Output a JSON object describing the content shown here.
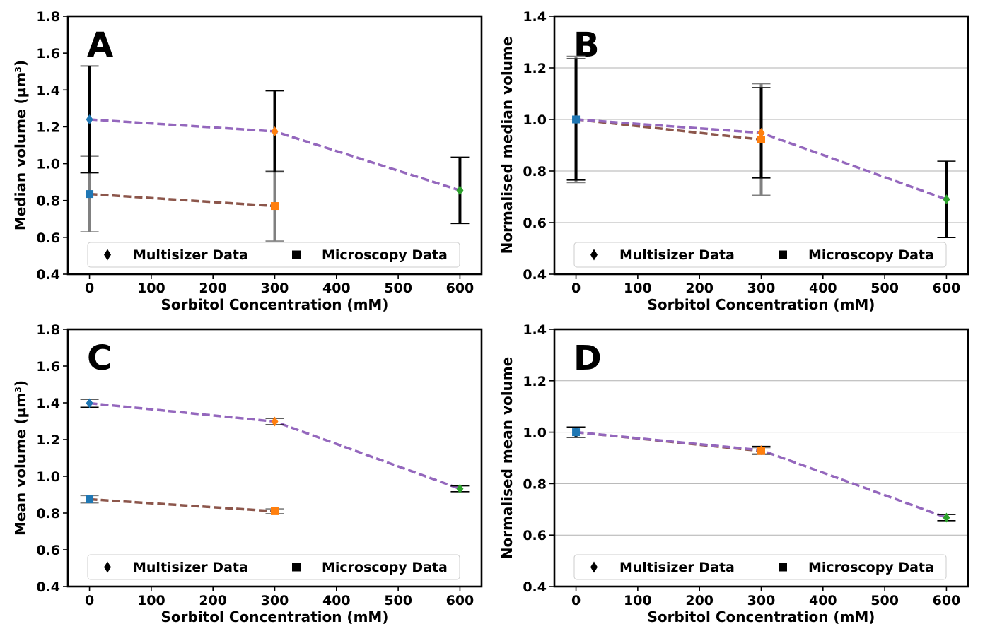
{
  "chart_data": [
    {
      "type": "line",
      "panel_label": "A",
      "xlabel": "Sorbitol Concentration (mM)",
      "ylabel": "Median volume (µm³)",
      "xlim": [
        -35,
        635
      ],
      "ylim": [
        0.4,
        1.8
      ],
      "xticks": [
        0,
        100,
        200,
        300,
        400,
        500,
        600
      ],
      "yticks": [
        0.4,
        0.6,
        0.8,
        1.0,
        1.2,
        1.4,
        1.6,
        1.8
      ],
      "ytick_labels": [
        "0.4",
        "0.6",
        "0.8",
        "1.0",
        "1.2",
        "1.4",
        "1.6",
        "1.8"
      ],
      "grid": false,
      "legend": {
        "placement": "bottom",
        "entries": [
          {
            "marker": "diamond",
            "label": "Multisizer Data"
          },
          {
            "marker": "square",
            "label": "Microscopy Data"
          }
        ]
      },
      "series": [
        {
          "name": "Multisizer Data",
          "marker": "diamond",
          "line_color": "#9467bd",
          "errorbar_color": "#000000",
          "x": [
            0,
            300,
            600
          ],
          "y": [
            1.24,
            1.175,
            0.855
          ],
          "yerr": [
            0.29,
            0.22,
            0.18
          ],
          "point_colors": [
            "#1f77b4",
            "#ff7f0e",
            "#2ca02c"
          ]
        },
        {
          "name": "Microscopy Data",
          "marker": "square",
          "line_color": "#8c564b",
          "errorbar_color": "#808080",
          "x": [
            0,
            300
          ],
          "y": [
            0.835,
            0.77
          ],
          "yerr": [
            0.205,
            0.19
          ],
          "point_colors": [
            "#1f77b4",
            "#ff7f0e"
          ]
        }
      ]
    },
    {
      "type": "line",
      "panel_label": "B",
      "xlabel": "Sorbitol Concentration (mM)",
      "ylabel": "Normalised median volume",
      "xlim": [
        -35,
        635
      ],
      "ylim": [
        0.4,
        1.4
      ],
      "xticks": [
        0,
        100,
        200,
        300,
        400,
        500,
        600
      ],
      "yticks": [
        0.4,
        0.6,
        0.8,
        1.0,
        1.2,
        1.4
      ],
      "ytick_labels": [
        "0.4",
        "0.6",
        "0.8",
        "1.0",
        "1.2",
        "1.4"
      ],
      "grid": true,
      "legend": {
        "placement": "bottom",
        "entries": [
          {
            "marker": "diamond",
            "label": "Multisizer Data"
          },
          {
            "marker": "square",
            "label": "Microscopy Data"
          }
        ]
      },
      "series": [
        {
          "name": "Multisizer Data",
          "marker": "diamond",
          "line_color": "#9467bd",
          "errorbar_color": "#000000",
          "x": [
            0,
            300,
            600
          ],
          "y": [
            1.0,
            0.948,
            0.69
          ],
          "yerr": [
            0.235,
            0.175,
            0.148
          ],
          "point_colors": [
            "#1f77b4",
            "#ff7f0e",
            "#2ca02c"
          ]
        },
        {
          "name": "Microscopy Data",
          "marker": "square",
          "line_color": "#8c564b",
          "errorbar_color": "#808080",
          "x": [
            0,
            300
          ],
          "y": [
            1.0,
            0.922
          ],
          "yerr": [
            0.245,
            0.216
          ],
          "point_colors": [
            "#1f77b4",
            "#ff7f0e"
          ]
        }
      ]
    },
    {
      "type": "line",
      "panel_label": "C",
      "xlabel": "Sorbitol Concentration (mM)",
      "ylabel": "Mean volume (µm³)",
      "xlim": [
        -35,
        635
      ],
      "ylim": [
        0.4,
        1.8
      ],
      "xticks": [
        0,
        100,
        200,
        300,
        400,
        500,
        600
      ],
      "yticks": [
        0.4,
        0.6,
        0.8,
        1.0,
        1.2,
        1.4,
        1.6,
        1.8
      ],
      "ytick_labels": [
        "0.4",
        "0.6",
        "0.8",
        "1.0",
        "1.2",
        "1.4",
        "1.6",
        "1.8"
      ],
      "grid": false,
      "legend": {
        "placement": "bottom",
        "entries": [
          {
            "marker": "diamond",
            "label": "Multisizer Data"
          },
          {
            "marker": "square",
            "label": "Microscopy Data"
          }
        ]
      },
      "series": [
        {
          "name": "Multisizer Data",
          "marker": "diamond",
          "line_color": "#9467bd",
          "errorbar_color": "#000000",
          "x": [
            0,
            300,
            600
          ],
          "y": [
            1.398,
            1.298,
            0.932
          ],
          "yerr": [
            0.022,
            0.018,
            0.016
          ],
          "point_colors": [
            "#1f77b4",
            "#ff7f0e",
            "#2ca02c"
          ]
        },
        {
          "name": "Microscopy Data",
          "marker": "square",
          "line_color": "#8c564b",
          "errorbar_color": "#808080",
          "x": [
            0,
            300
          ],
          "y": [
            0.875,
            0.81
          ],
          "yerr": [
            0.02,
            0.013
          ],
          "point_colors": [
            "#1f77b4",
            "#ff7f0e"
          ]
        }
      ]
    },
    {
      "type": "line",
      "panel_label": "D",
      "xlabel": "Sorbitol Concentration (mM)",
      "ylabel": "Normalised mean volume",
      "xlim": [
        -35,
        635
      ],
      "ylim": [
        0.4,
        1.4
      ],
      "xticks": [
        0,
        100,
        200,
        300,
        400,
        500,
        600
      ],
      "yticks": [
        0.4,
        0.6,
        0.8,
        1.0,
        1.2,
        1.4
      ],
      "ytick_labels": [
        "0.4",
        "0.6",
        "0.8",
        "1.0",
        "1.2",
        "1.4"
      ],
      "grid": true,
      "legend": {
        "placement": "bottom",
        "entries": [
          {
            "marker": "diamond",
            "label": "Multisizer Data"
          },
          {
            "marker": "square",
            "label": "Microscopy Data"
          }
        ]
      },
      "series": [
        {
          "name": "Multisizer Data",
          "marker": "diamond",
          "line_color": "#9467bd",
          "errorbar_color": "#000000",
          "x": [
            0,
            300,
            600
          ],
          "y": [
            1.0,
            0.93,
            0.668
          ],
          "yerr": [
            0.02,
            0.015,
            0.012
          ],
          "point_colors": [
            "#1f77b4",
            "#ff7f0e",
            "#2ca02c"
          ]
        },
        {
          "name": "Microscopy Data",
          "marker": "square",
          "line_color": "#8c564b",
          "errorbar_color": "#808080",
          "x": [
            0,
            300
          ],
          "y": [
            1.0,
            0.927
          ],
          "yerr": [
            0.02,
            0.013
          ],
          "point_colors": [
            "#1f77b4",
            "#ff7f0e"
          ]
        }
      ]
    }
  ]
}
